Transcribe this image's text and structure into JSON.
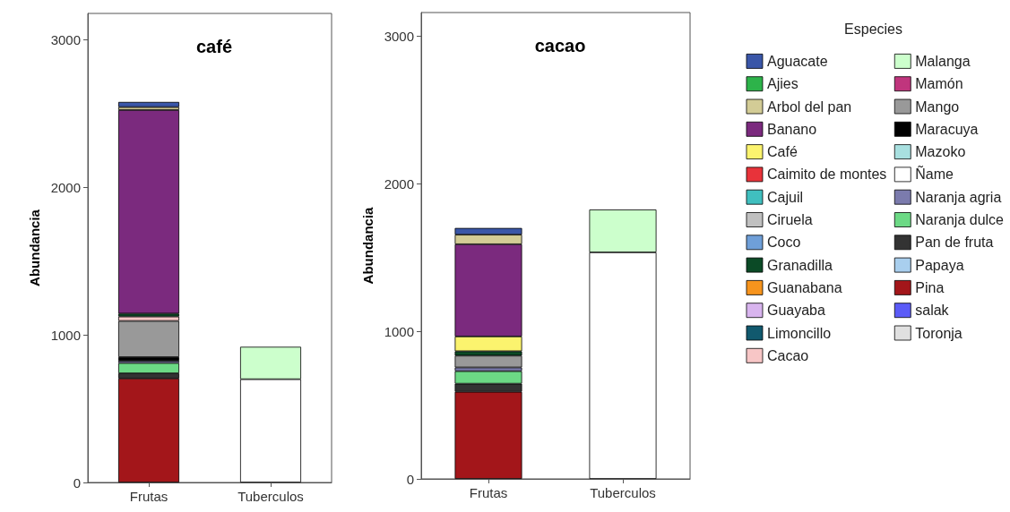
{
  "chart_data": [
    {
      "type": "bar",
      "stacked": true,
      "title": "café",
      "ylabel": "Abundancia",
      "categories": [
        "Frutas",
        "Tuberculos"
      ],
      "ylim": [
        0,
        3180
      ],
      "yticks": [
        0,
        1000,
        2000,
        3000
      ],
      "grid": false,
      "legend": false,
      "series": [
        {
          "color": "#e0e0e0",
          "values": [
            null,
            null
          ]
        },
        {
          "color": "#5b5bf7",
          "values": [
            null,
            null
          ]
        },
        {
          "color": "#a3161a",
          "values": [
            705,
            null
          ]
        },
        {
          "color": "#a9cfee",
          "values": [
            null,
            null
          ]
        },
        {
          "color": "#333333",
          "values": [
            35,
            null
          ]
        },
        {
          "color": "#6cd985",
          "values": [
            70,
            null
          ]
        },
        {
          "color": "#7b7bad",
          "values": [
            15,
            null
          ]
        },
        {
          "color": "#ffffff",
          "values": [
            null,
            700
          ]
        },
        {
          "color": "#a8e0e0",
          "values": [
            null,
            null
          ]
        },
        {
          "color": "#000000",
          "values": [
            25,
            null
          ]
        },
        {
          "color": "#999999",
          "values": [
            245,
            null
          ]
        },
        {
          "color": "#c0357d",
          "values": [
            null,
            null
          ]
        },
        {
          "color": "#ccffcc",
          "values": [
            null,
            220
          ]
        },
        {
          "color": "#f7c6c6",
          "values": [
            30,
            null
          ]
        },
        {
          "color": "#11596e",
          "values": [
            null,
            null
          ]
        },
        {
          "color": "#d8b4ee",
          "values": [
            null,
            null
          ]
        },
        {
          "color": "#f7941d",
          "values": [
            null,
            null
          ]
        },
        {
          "color": "#0b4a26",
          "values": [
            20,
            null
          ]
        },
        {
          "color": "#6f9fd8",
          "values": [
            null,
            null
          ]
        },
        {
          "color": "#c0c0c0",
          "values": [
            null,
            null
          ]
        },
        {
          "color": "#40bfbf",
          "values": [
            null,
            null
          ]
        },
        {
          "color": "#e8333a",
          "values": [
            null,
            null
          ]
        },
        {
          "color": "#fbf36e",
          "values": [
            null,
            null
          ]
        },
        {
          "color": "#7b2a7e",
          "values": [
            1380,
            null
          ]
        },
        {
          "color": "#d3cc96",
          "values": [
            20,
            null
          ]
        },
        {
          "color": "#2db34a",
          "values": [
            null,
            null
          ]
        },
        {
          "color": "#3a56a8",
          "values": [
            35,
            null
          ]
        }
      ]
    },
    {
      "type": "bar",
      "stacked": true,
      "title": "cacao",
      "ylabel": "Abundancia",
      "categories": [
        "Frutas",
        "Tuberculos"
      ],
      "ylim": [
        0,
        3160
      ],
      "yticks": [
        0,
        1000,
        2000,
        3000
      ],
      "grid": false,
      "legend": "right",
      "legend_title": "Especies",
      "series": [
        {
          "name": "Toronja",
          "color": "#e0e0e0",
          "values": [
            null,
            null
          ]
        },
        {
          "name": "salak",
          "color": "#5b5bf7",
          "values": [
            null,
            null
          ]
        },
        {
          "name": "Pina",
          "color": "#a3161a",
          "values": [
            590,
            null
          ]
        },
        {
          "name": "Papaya",
          "color": "#a9cfee",
          "values": [
            null,
            null
          ]
        },
        {
          "name": "Pan de fruta",
          "color": "#333333",
          "values": [
            55,
            null
          ]
        },
        {
          "name": "Naranja dulce",
          "color": "#6cd985",
          "values": [
            85,
            null
          ]
        },
        {
          "name": "Naranja agria",
          "color": "#7b7bad",
          "values": [
            25,
            null
          ]
        },
        {
          "name": "Ñame",
          "color": "#ffffff",
          "values": [
            null,
            1535
          ]
        },
        {
          "name": "Mazoko",
          "color": "#a8e0e0",
          "values": [
            null,
            null
          ]
        },
        {
          "name": "Maracuya",
          "color": "#000000",
          "values": [
            null,
            null
          ]
        },
        {
          "name": "Mango",
          "color": "#999999",
          "values": [
            80,
            null
          ]
        },
        {
          "name": "Mamón",
          "color": "#c0357d",
          "values": [
            null,
            null
          ]
        },
        {
          "name": "Malanga",
          "color": "#ccffcc",
          "values": [
            null,
            290
          ]
        },
        {
          "name": "Cacao",
          "color": "#f7c6c6",
          "values": [
            null,
            null
          ]
        },
        {
          "name": "Limoncillo",
          "color": "#11596e",
          "values": [
            null,
            null
          ]
        },
        {
          "name": "Guayaba",
          "color": "#d8b4ee",
          "values": [
            null,
            null
          ]
        },
        {
          "name": "Guanabana",
          "color": "#f7941d",
          "values": [
            null,
            null
          ]
        },
        {
          "name": "Granadilla",
          "color": "#0b4a26",
          "values": [
            30,
            null
          ]
        },
        {
          "name": "Coco",
          "color": "#6f9fd8",
          "values": [
            null,
            null
          ]
        },
        {
          "name": "Ciruela",
          "color": "#c0c0c0",
          "values": [
            null,
            null
          ]
        },
        {
          "name": "Cajuil",
          "color": "#40bfbf",
          "values": [
            null,
            null
          ]
        },
        {
          "name": "Caimito de montes",
          "color": "#e8333a",
          "values": [
            null,
            null
          ]
        },
        {
          "name": "Café",
          "color": "#fbf36e",
          "values": [
            100,
            null
          ]
        },
        {
          "name": "Banano",
          "color": "#7b2a7e",
          "values": [
            625,
            null
          ]
        },
        {
          "name": "Arbol del pan",
          "color": "#d3cc96",
          "values": [
            65,
            null
          ]
        },
        {
          "name": "Ajies",
          "color": "#2db34a",
          "values": [
            null,
            null
          ]
        },
        {
          "name": "Aguacate",
          "color": "#3a56a8",
          "values": [
            45,
            null
          ]
        }
      ]
    }
  ]
}
